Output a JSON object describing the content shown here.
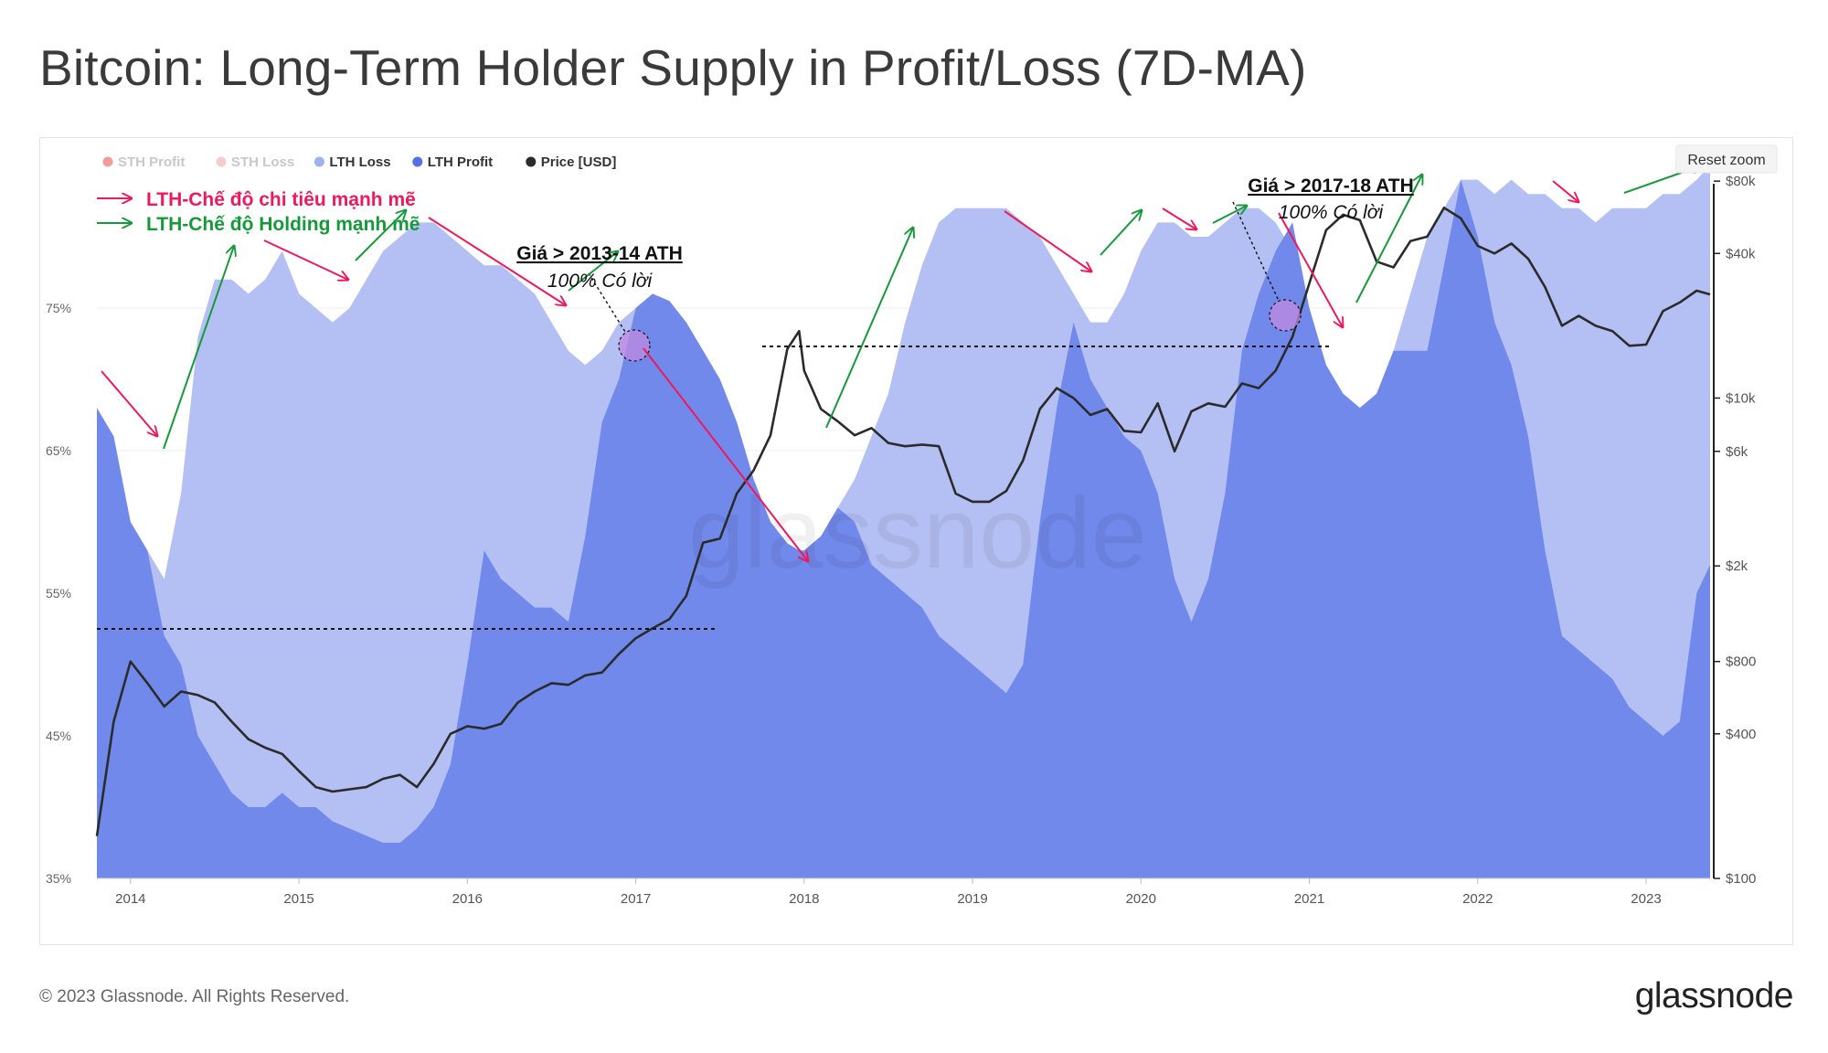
{
  "title": "Bitcoin: Long-Term Holder Supply in Profit/Loss (7D-MA)",
  "footer": {
    "copyright": "© 2023 Glassnode. All Rights Reserved.",
    "brand": "glassnode"
  },
  "watermark": "glassnode",
  "reset_zoom": "Reset zoom",
  "colors": {
    "sth_profit": "#e24a4a",
    "sth_loss": "#f2a3a3",
    "lth_loss": "#b4c0f3",
    "lth_profit": "#7189ea",
    "price": "#2b2b2b",
    "spend_arrow": "#f0185c",
    "hold_arrow": "#159a3a"
  },
  "legend": [
    {
      "label": "STH Profit",
      "color": "#e24a4a",
      "muted": true
    },
    {
      "label": "STH Loss",
      "color": "#f2a3a3",
      "muted": true
    },
    {
      "label": "LTH Loss",
      "color": "#9fb0f0",
      "muted": false
    },
    {
      "label": "LTH Profit",
      "color": "#5472e6",
      "muted": false
    },
    {
      "label": "Price [USD]",
      "color": "#2b2b2b",
      "muted": false
    }
  ],
  "key": {
    "spend": "LTH-Chế độ chi tiêu mạnh mẽ",
    "hold": "LTH-Chế độ Holding mạnh mẽ"
  },
  "annotations": [
    {
      "title": "Giá > 2013-14 ATH",
      "subtitle": "100% Có lời"
    },
    {
      "title": "Giá > 2017-18 ATH",
      "subtitle": "100% Có lời"
    }
  ],
  "chart_data": {
    "type": "area",
    "title": "Bitcoin: Long-Term Holder Supply in Profit/Loss (7D-MA)",
    "x_ticks": [
      "2014",
      "2015",
      "2016",
      "2017",
      "2018",
      "2019",
      "2020",
      "2021",
      "2022",
      "2023"
    ],
    "x_range": [
      2013.8,
      2023.38
    ],
    "y_left": {
      "ticks": [
        "35%",
        "45%",
        "55%",
        "65%",
        "75%"
      ],
      "range": [
        35,
        85
      ]
    },
    "y_right": {
      "scale": "log",
      "ticks": [
        "$100",
        "$400",
        "$800",
        "$2k",
        "$6k",
        "$10k",
        "$40k",
        "$80k"
      ],
      "range": [
        100,
        93000
      ]
    },
    "x": [
      2013.8,
      2013.9,
      2014.0,
      2014.1,
      2014.2,
      2014.3,
      2014.4,
      2014.5,
      2014.6,
      2014.7,
      2014.8,
      2014.9,
      2015.0,
      2015.1,
      2015.2,
      2015.3,
      2015.4,
      2015.5,
      2015.6,
      2015.7,
      2015.8,
      2015.9,
      2016.0,
      2016.1,
      2016.2,
      2016.3,
      2016.4,
      2016.5,
      2016.6,
      2016.7,
      2016.8,
      2016.9,
      2017.0,
      2017.1,
      2017.2,
      2017.3,
      2017.4,
      2017.5,
      2017.6,
      2017.7,
      2017.8,
      2017.9,
      2017.97,
      2018.0,
      2018.1,
      2018.2,
      2018.3,
      2018.4,
      2018.5,
      2018.6,
      2018.7,
      2018.8,
      2018.9,
      2019.0,
      2019.1,
      2019.2,
      2019.3,
      2019.4,
      2019.5,
      2019.6,
      2019.7,
      2019.8,
      2019.9,
      2020.0,
      2020.1,
      2020.2,
      2020.3,
      2020.4,
      2020.5,
      2020.6,
      2020.7,
      2020.8,
      2020.9,
      2021.0,
      2021.1,
      2021.2,
      2021.3,
      2021.4,
      2021.5,
      2021.6,
      2021.7,
      2021.8,
      2021.9,
      2022.0,
      2022.1,
      2022.2,
      2022.3,
      2022.4,
      2022.5,
      2022.6,
      2022.7,
      2022.8,
      2022.9,
      2023.0,
      2023.1,
      2023.2,
      2023.3,
      2023.38
    ],
    "series": [
      {
        "name": "LTH Supply (Profit + Loss)",
        "values": [
          68,
          66,
          60,
          58,
          56,
          62,
          73,
          77,
          77,
          76,
          77,
          79,
          76,
          75,
          74,
          75,
          77,
          79,
          80,
          81,
          81,
          80,
          79,
          78,
          78,
          77,
          76,
          74,
          72,
          71,
          72,
          74,
          75,
          76,
          75.5,
          74,
          72,
          70,
          67,
          63,
          60,
          58.5,
          58,
          58,
          59,
          61,
          63,
          66,
          69,
          74,
          78,
          81,
          82,
          82,
          82,
          82,
          81,
          80,
          78,
          76,
          74,
          74,
          76,
          79,
          81,
          81,
          80,
          80,
          81,
          82,
          82,
          81,
          79,
          75,
          71,
          69,
          68,
          69,
          72,
          76,
          80,
          82,
          84,
          84,
          83,
          84,
          83,
          83,
          82,
          82,
          81,
          82,
          82,
          82,
          83,
          83,
          84,
          85
        ]
      },
      {
        "name": "LTH Profit",
        "values": [
          68,
          66,
          60,
          58,
          52,
          50,
          45,
          43,
          41,
          40,
          40,
          41,
          40,
          40,
          39,
          38.5,
          38,
          37.5,
          37.5,
          38.5,
          40,
          43,
          50,
          58,
          56,
          55,
          54,
          54,
          53,
          59,
          67,
          70,
          75,
          76,
          75.5,
          74,
          72,
          70,
          67,
          63,
          60,
          58.5,
          58,
          58,
          59,
          61,
          60,
          57,
          56,
          55,
          54,
          52,
          51,
          50,
          49,
          48,
          50,
          60,
          68,
          74,
          70,
          68,
          66,
          65,
          62,
          56,
          53,
          56,
          62,
          72,
          76,
          79,
          81,
          75,
          71,
          69,
          68,
          69,
          72,
          72,
          72,
          78,
          84,
          80,
          74,
          71,
          66,
          58,
          52,
          51,
          50,
          49,
          47,
          46,
          45,
          46,
          55,
          57
        ]
      },
      {
        "name": "Price [USD]",
        "values": [
          150,
          450,
          800,
          650,
          520,
          600,
          580,
          540,
          450,
          380,
          350,
          330,
          280,
          240,
          230,
          235,
          240,
          260,
          270,
          240,
          300,
          400,
          430,
          420,
          440,
          540,
          600,
          650,
          640,
          700,
          720,
          860,
          1000,
          1100,
          1200,
          1500,
          2500,
          2600,
          4000,
          5000,
          7000,
          16000,
          19000,
          13000,
          9000,
          8000,
          7000,
          7500,
          6500,
          6300,
          6400,
          6300,
          4000,
          3700,
          3700,
          4100,
          5500,
          9000,
          11000,
          10000,
          8500,
          9000,
          7300,
          7200,
          9500,
          6000,
          8800,
          9500,
          9200,
          11500,
          11000,
          13000,
          18000,
          30000,
          50000,
          58000,
          55000,
          37000,
          35000,
          45000,
          47000,
          62000,
          56000,
          43000,
          40000,
          44000,
          38000,
          29000,
          20000,
          22000,
          20000,
          19000,
          16500,
          16700,
          23000,
          25000,
          28000,
          27000
        ]
      }
    ],
    "grid": true,
    "legend_position": "top-left"
  }
}
